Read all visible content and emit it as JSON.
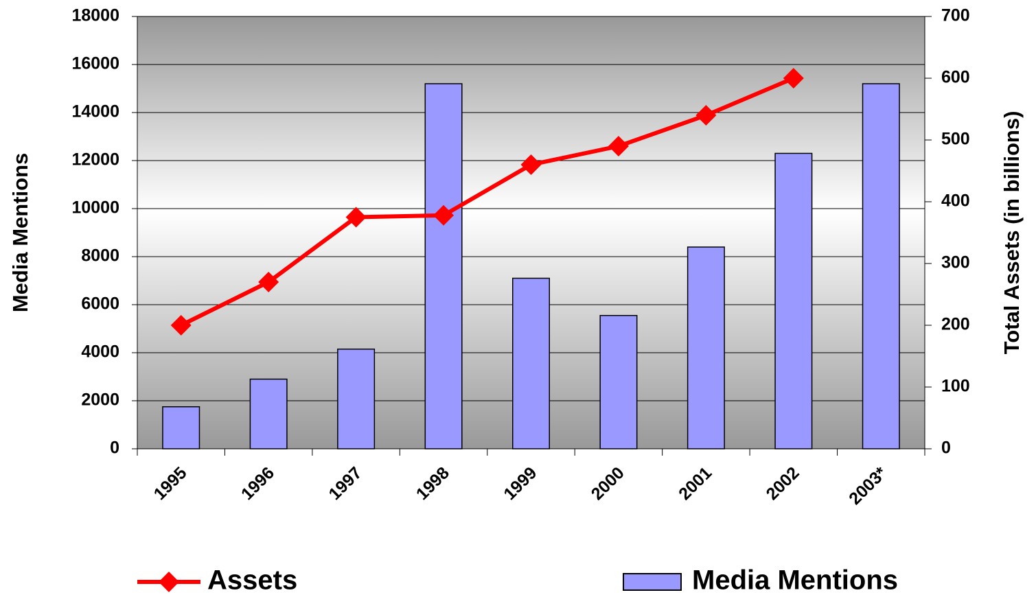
{
  "chart_data": {
    "type": "bar-line",
    "y_label": "Media Mentions",
    "y2_label": "Total Assets (in billions)",
    "categories": [
      "1995",
      "1996",
      "1997",
      "1998",
      "1999",
      "2000",
      "2001",
      "2002",
      "2003*"
    ],
    "series": [
      {
        "name": "Media Mentions",
        "type": "bar",
        "color": "#9999ff",
        "values": [
          1750,
          2900,
          4150,
          15200,
          7100,
          5550,
          8400,
          12300,
          15200
        ]
      },
      {
        "name": "Assets",
        "type": "line",
        "axis": "y2",
        "color": "#ff0000",
        "values": [
          200,
          270,
          375,
          378,
          460,
          490,
          540,
          600,
          null
        ]
      }
    ],
    "ylim": [
      0,
      18000
    ],
    "yticks": [
      0,
      2000,
      4000,
      6000,
      8000,
      10000,
      12000,
      14000,
      16000,
      18000
    ],
    "y2lim": [
      0,
      700
    ],
    "y2ticks": [
      0,
      100,
      200,
      300,
      400,
      500,
      600,
      700
    ],
    "grid": true
  }
}
